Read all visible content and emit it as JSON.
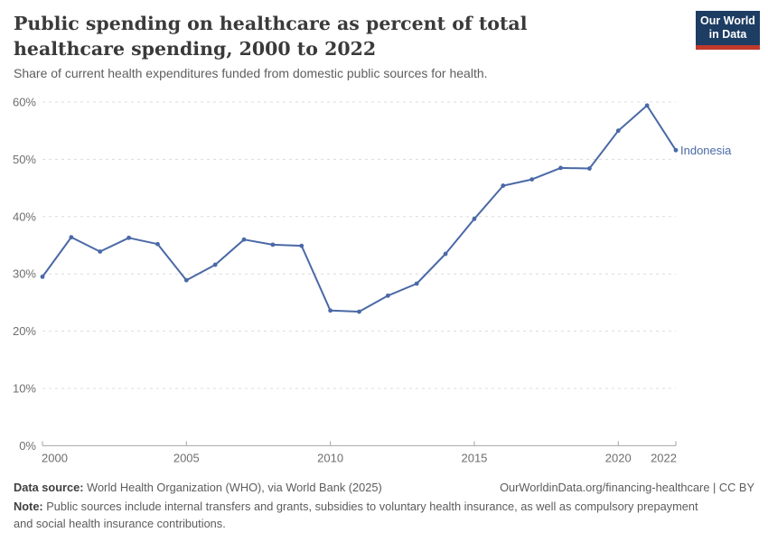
{
  "header": {
    "title": "Public spending on healthcare as percent of total healthcare spending, 2000 to 2022",
    "subtitle": "Share of current health expenditures funded from domestic public sources for health.",
    "logo_line1": "Our World",
    "logo_line2": "in Data"
  },
  "chart_data": {
    "type": "line",
    "title": "Public spending on healthcare as percent of total healthcare spending, 2000 to 2022",
    "xlabel": "",
    "ylabel": "",
    "ylim": [
      0,
      60
    ],
    "yticks": [
      0,
      10,
      20,
      30,
      40,
      50,
      60
    ],
    "ytick_suffix": "%",
    "xticks": [
      2000,
      2005,
      2010,
      2015,
      2020,
      2022
    ],
    "grid": "horizontal-dashed",
    "legend_position": "end-of-line",
    "series": [
      {
        "name": "Indonesia",
        "color": "#4a69a6",
        "x": [
          2000,
          2001,
          2002,
          2003,
          2004,
          2005,
          2006,
          2007,
          2008,
          2009,
          2010,
          2011,
          2012,
          2013,
          2014,
          2015,
          2016,
          2017,
          2018,
          2019,
          2020,
          2021,
          2022
        ],
        "values": [
          29.5,
          36.4,
          33.9,
          36.3,
          35.2,
          28.9,
          31.6,
          36.0,
          35.1,
          34.9,
          23.6,
          23.4,
          26.2,
          28.3,
          33.5,
          39.6,
          45.4,
          46.5,
          48.5,
          48.4,
          55.0,
          59.4,
          51.6
        ]
      }
    ]
  },
  "colors": {
    "line": "#4a69a6",
    "grid": "#dcdcdc",
    "axis": "#a6a6a6",
    "tick_label": "#6e6e6e",
    "logo_bg": "#1d3d63",
    "logo_stripe": "#c0392b"
  },
  "footer": {
    "data_source_label": "Data source:",
    "data_source": "World Health Organization (WHO), via World Bank (2025)",
    "link": "OurWorldinData.org/financing-healthcare | CC BY",
    "note_label": "Note:",
    "note": "Public sources include internal transfers and grants, subsidies to voluntary health insurance, as well as compulsory prepayment and social health insurance contributions."
  }
}
